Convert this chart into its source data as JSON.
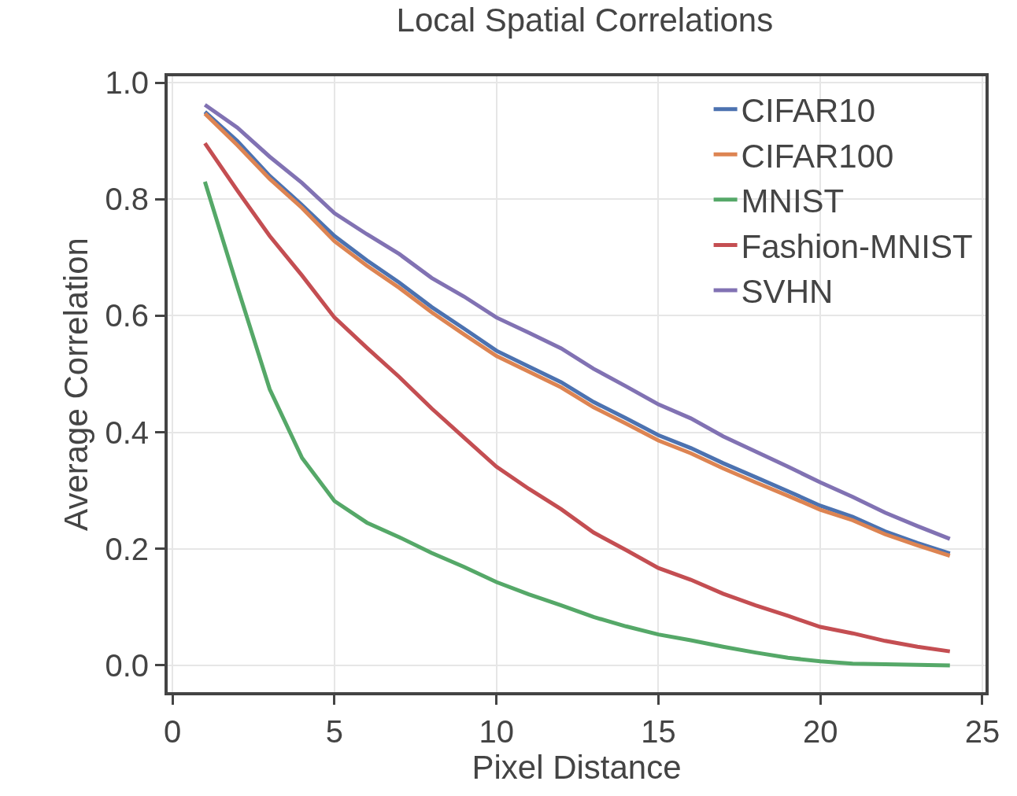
{
  "chart_data": {
    "type": "line",
    "title": "Local Spatial Correlations",
    "xlabel": "Pixel Distance",
    "ylabel": "Average Correlation",
    "x": [
      1,
      2,
      3,
      4,
      5,
      6,
      7,
      8,
      9,
      10,
      11,
      12,
      13,
      14,
      15,
      16,
      17,
      18,
      19,
      20,
      21,
      22,
      23,
      24
    ],
    "series": [
      {
        "name": "CIFAR10",
        "color": "#4c72b0",
        "values": [
          0.95,
          0.9,
          0.84,
          0.79,
          0.737,
          0.695,
          0.657,
          0.615,
          0.578,
          0.54,
          0.513,
          0.486,
          0.452,
          0.424,
          0.395,
          0.373,
          0.347,
          0.323,
          0.299,
          0.274,
          0.255,
          0.23,
          0.21,
          0.192
        ]
      },
      {
        "name": "CIFAR100",
        "color": "#dd8452",
        "values": [
          0.947,
          0.893,
          0.835,
          0.785,
          0.728,
          0.686,
          0.648,
          0.606,
          0.568,
          0.531,
          0.504,
          0.477,
          0.443,
          0.415,
          0.386,
          0.364,
          0.338,
          0.314,
          0.291,
          0.267,
          0.249,
          0.225,
          0.206,
          0.188
        ]
      },
      {
        "name": "MNIST",
        "color": "#55a868",
        "values": [
          0.83,
          0.65,
          0.474,
          0.356,
          0.282,
          0.245,
          0.22,
          0.193,
          0.169,
          0.143,
          0.122,
          0.103,
          0.083,
          0.067,
          0.053,
          0.043,
          0.032,
          0.022,
          0.013,
          0.007,
          0.003,
          0.002,
          0.001,
          0.0
        ]
      },
      {
        "name": "Fashion-MNIST",
        "color": "#c44e52",
        "values": [
          0.896,
          0.815,
          0.737,
          0.669,
          0.597,
          0.545,
          0.495,
          0.441,
          0.391,
          0.341,
          0.303,
          0.268,
          0.228,
          0.198,
          0.167,
          0.147,
          0.123,
          0.103,
          0.085,
          0.066,
          0.055,
          0.042,
          0.032,
          0.024
        ]
      },
      {
        "name": "SVHN",
        "color": "#8172b3",
        "values": [
          0.962,
          0.923,
          0.873,
          0.828,
          0.776,
          0.74,
          0.706,
          0.665,
          0.633,
          0.597,
          0.571,
          0.544,
          0.509,
          0.479,
          0.448,
          0.424,
          0.393,
          0.367,
          0.341,
          0.314,
          0.289,
          0.262,
          0.239,
          0.217
        ]
      }
    ],
    "xlim": [
      -0.15,
      25.1
    ],
    "ylim": [
      -0.046,
      1.011
    ],
    "xticks": [
      0,
      5,
      10,
      15,
      20,
      25
    ],
    "yticks": [
      {
        "value": 0,
        "label": "0.0"
      },
      {
        "value": 0.2,
        "label": "0.2"
      },
      {
        "value": 0.4,
        "label": "0.4"
      },
      {
        "value": 0.6,
        "label": "0.6"
      },
      {
        "value": 0.8,
        "label": "0.8"
      },
      {
        "value": 1,
        "label": "1.0"
      }
    ],
    "grid": true,
    "legend": "top right",
    "line_style": "solid",
    "marker": "none"
  }
}
